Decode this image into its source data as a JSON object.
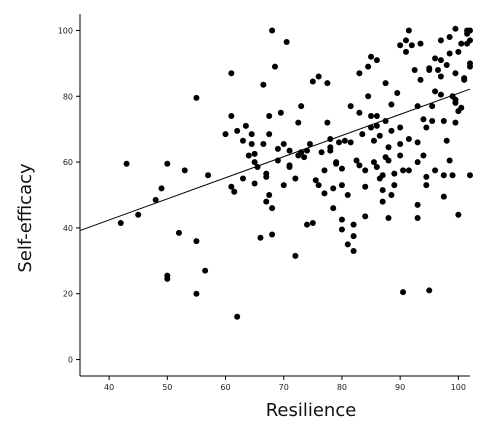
{
  "chart_data": {
    "type": "scatter",
    "title": "",
    "xlabel": "Resilience",
    "ylabel": "Self-efficacy",
    "xlim": [
      35,
      102
    ],
    "ylim": [
      -5,
      105
    ],
    "x_ticks": [
      40,
      50,
      60,
      70,
      80,
      90,
      100
    ],
    "y_ticks": [
      0,
      20,
      40,
      60,
      80,
      100
    ],
    "grid": false,
    "legend": "none",
    "point_color": "#000000",
    "fit_line": {
      "x": [
        35,
        102
      ],
      "y": [
        39.2,
        82.2
      ]
    },
    "series": [
      {
        "points": [
          [
            42,
            41.5
          ],
          [
            43,
            59.5
          ],
          [
            45,
            44
          ],
          [
            48,
            48.5
          ],
          [
            49,
            52
          ],
          [
            50,
            59.5
          ],
          [
            50,
            24.5
          ],
          [
            50,
            25.5
          ],
          [
            52,
            38.5
          ],
          [
            53,
            57.5
          ],
          [
            55,
            79.5
          ],
          [
            55,
            36
          ],
          [
            55,
            20
          ],
          [
            56.5,
            27
          ],
          [
            57,
            56
          ],
          [
            60,
            68.5
          ],
          [
            61,
            74
          ],
          [
            61,
            87
          ],
          [
            61,
            52.5
          ],
          [
            61.5,
            51
          ],
          [
            62,
            69.5
          ],
          [
            62,
            13
          ],
          [
            63,
            66.5
          ],
          [
            63,
            55
          ],
          [
            63.5,
            71
          ],
          [
            64,
            62
          ],
          [
            64.5,
            68.5
          ],
          [
            64.5,
            65.5
          ],
          [
            65,
            62.5
          ],
          [
            65,
            60
          ],
          [
            65,
            53.5
          ],
          [
            65.5,
            58.5
          ],
          [
            66,
            37
          ],
          [
            66.5,
            65.5
          ],
          [
            66.5,
            83.5
          ],
          [
            67,
            56.5
          ],
          [
            67,
            55.5
          ],
          [
            67,
            48
          ],
          [
            67.5,
            74
          ],
          [
            67.5,
            68.5
          ],
          [
            67.5,
            50
          ],
          [
            68,
            100
          ],
          [
            68,
            46
          ],
          [
            68,
            38
          ],
          [
            68.5,
            89
          ],
          [
            69,
            60.5
          ],
          [
            69,
            64
          ],
          [
            69.5,
            75
          ],
          [
            70,
            65.5
          ],
          [
            70,
            53
          ],
          [
            70.5,
            96.5
          ],
          [
            71,
            63.5
          ],
          [
            71,
            58.5
          ],
          [
            72,
            55
          ],
          [
            72,
            31.5
          ],
          [
            72.5,
            72
          ],
          [
            72.5,
            62
          ],
          [
            73,
            63
          ],
          [
            73,
            77
          ],
          [
            73.5,
            61.5
          ],
          [
            74,
            63.5
          ],
          [
            74.5,
            65.5
          ],
          [
            75,
            41.5
          ],
          [
            75,
            84.5
          ],
          [
            75.5,
            54.5
          ],
          [
            76,
            86
          ],
          [
            76.5,
            63
          ],
          [
            77,
            50.5
          ],
          [
            77,
            57.5
          ],
          [
            77.5,
            84
          ],
          [
            77.5,
            72
          ],
          [
            78,
            63.5
          ],
          [
            78,
            64.5
          ],
          [
            78,
            67
          ],
          [
            78.5,
            52
          ],
          [
            78.5,
            46
          ],
          [
            79,
            59.5
          ],
          [
            79,
            60
          ],
          [
            79.5,
            66
          ],
          [
            80,
            53
          ],
          [
            80,
            58
          ],
          [
            80,
            39.5
          ],
          [
            80,
            42.5
          ],
          [
            80.5,
            66.5
          ],
          [
            81,
            35
          ],
          [
            81,
            50
          ],
          [
            81.5,
            77
          ],
          [
            81.5,
            66
          ],
          [
            82,
            37.5
          ],
          [
            82,
            41
          ],
          [
            82.5,
            60.5
          ],
          [
            83,
            87
          ],
          [
            83,
            75
          ],
          [
            83.5,
            68.5
          ],
          [
            84,
            57.5
          ],
          [
            84,
            43.5
          ],
          [
            84,
            52.5
          ],
          [
            84.5,
            89
          ],
          [
            84.5,
            80
          ],
          [
            85,
            74
          ],
          [
            85,
            92
          ],
          [
            85,
            70.5
          ],
          [
            85.5,
            66.5
          ],
          [
            85.5,
            60
          ],
          [
            86,
            91
          ],
          [
            86,
            74
          ],
          [
            86,
            71
          ],
          [
            86,
            58.5
          ],
          [
            86.5,
            68
          ],
          [
            86.5,
            55
          ],
          [
            87,
            48
          ],
          [
            87,
            51.5
          ],
          [
            87.5,
            84
          ],
          [
            87.5,
            72.5
          ],
          [
            87.5,
            61.5
          ],
          [
            88,
            60.5
          ],
          [
            88,
            64.5
          ],
          [
            88.5,
            77.5
          ],
          [
            88.5,
            69.5
          ],
          [
            88.5,
            50
          ],
          [
            89,
            56.5
          ],
          [
            89,
            53
          ],
          [
            89.5,
            81
          ],
          [
            90,
            95.5
          ],
          [
            90,
            70.5
          ],
          [
            90,
            65.5
          ],
          [
            90,
            62
          ],
          [
            90.5,
            57.5
          ],
          [
            91,
            97
          ],
          [
            91,
            93.5
          ],
          [
            91.5,
            100
          ],
          [
            91.5,
            67
          ],
          [
            91.5,
            57.5
          ],
          [
            92,
            95.5
          ],
          [
            92.5,
            88
          ],
          [
            93,
            77
          ],
          [
            93,
            66
          ],
          [
            93,
            60
          ],
          [
            93.5,
            96
          ],
          [
            93.5,
            85
          ],
          [
            94,
            73
          ],
          [
            94,
            62
          ],
          [
            94.5,
            70.5
          ],
          [
            94.5,
            55.5
          ],
          [
            94.5,
            53
          ],
          [
            95,
            88
          ],
          [
            95,
            88.5
          ],
          [
            95,
            21
          ],
          [
            95.5,
            77
          ],
          [
            95.5,
            72.5
          ],
          [
            96,
            91.5
          ],
          [
            96,
            81.5
          ],
          [
            96,
            57.5
          ],
          [
            96.5,
            88
          ],
          [
            97,
            97
          ],
          [
            97,
            91
          ],
          [
            97,
            86
          ],
          [
            97,
            80.5
          ],
          [
            97.5,
            72.5
          ],
          [
            97.5,
            56
          ],
          [
            97.5,
            49.5
          ],
          [
            98,
            89.5
          ],
          [
            98,
            66.5
          ],
          [
            98.5,
            98
          ],
          [
            98.5,
            93
          ],
          [
            98.5,
            60.5
          ],
          [
            99,
            80
          ],
          [
            99,
            56
          ],
          [
            99.5,
            100.5
          ],
          [
            99.5,
            87
          ],
          [
            99.5,
            79
          ],
          [
            99.5,
            78
          ],
          [
            99.5,
            72
          ],
          [
            100,
            93.5
          ],
          [
            100,
            75.5
          ],
          [
            100,
            44
          ],
          [
            100.5,
            96
          ],
          [
            100.5,
            76.5
          ],
          [
            101,
            85
          ],
          [
            101,
            85.5
          ],
          [
            101.5,
            96
          ],
          [
            101.5,
            99
          ],
          [
            101.5,
            100
          ],
          [
            102,
            100
          ],
          [
            102,
            97
          ],
          [
            102,
            90
          ],
          [
            102,
            89
          ],
          [
            102,
            56
          ],
          [
            93,
            43
          ],
          [
            93,
            47
          ],
          [
            90.5,
            20.5
          ],
          [
            88,
            43
          ],
          [
            87,
            56
          ],
          [
            83,
            59
          ],
          [
            82,
            33
          ],
          [
            76,
            53
          ],
          [
            74,
            41
          ],
          [
            71,
            59
          ]
        ]
      }
    ]
  }
}
